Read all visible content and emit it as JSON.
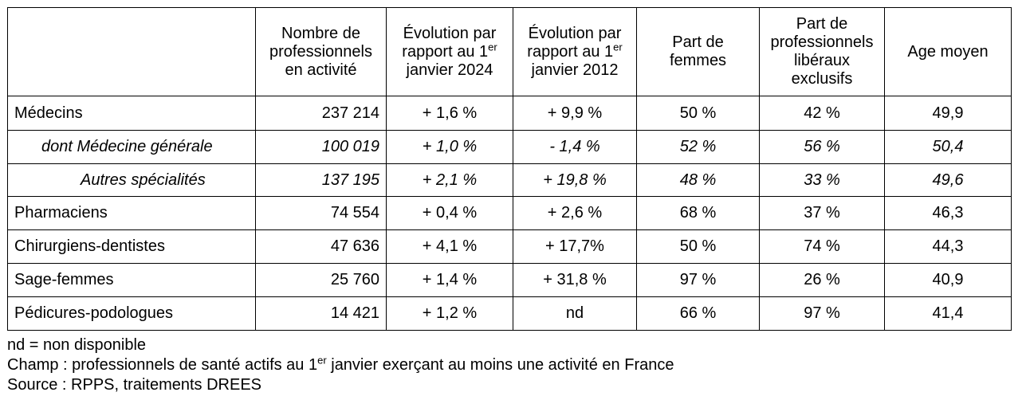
{
  "header": {
    "col1": "Nombre de professionnels en activité",
    "col2_main": "Évolution par rapport au 1",
    "col2_sup": "er",
    "col2_end": " janvier 2024",
    "col3_main": "Évolution par rapport au 1",
    "col3_sup": "er",
    "col3_end": " janvier 2012",
    "col4": "Part de femmes",
    "col5": "Part de professionnels libéraux exclusifs",
    "col6": "Age moyen"
  },
  "rows": [
    {
      "label": "Médecins",
      "count": "237 214",
      "evo2024": "+ 1,6 %",
      "evo2012": "+ 9,9 %",
      "femmes": "50 %",
      "liberaux": "42 %",
      "age": "49,9"
    },
    {
      "label": "dont Médecine générale",
      "count": "100 019",
      "evo2024": "+ 1,0 %",
      "evo2012": "- 1,4 %",
      "femmes": "52 %",
      "liberaux": "56 %",
      "age": "50,4"
    },
    {
      "label": "Autres spécialités",
      "count": "137 195",
      "evo2024": "+ 2,1 %",
      "evo2012": "+ 19,8 %",
      "femmes": "48 %",
      "liberaux": "33 %",
      "age": "49,6"
    },
    {
      "label": "Pharmaciens",
      "count": "74 554",
      "evo2024": "+ 0,4 %",
      "evo2012": "+ 2,6 %",
      "femmes": "68 %",
      "liberaux": "37 %",
      "age": "46,3"
    },
    {
      "label": "Chirurgiens-dentistes",
      "count": "47 636",
      "evo2024": "+ 4,1 %",
      "evo2012": "+ 17,7%",
      "femmes": "50 %",
      "liberaux": "74 %",
      "age": "44,3"
    },
    {
      "label": "Sage-femmes",
      "count": "25 760",
      "evo2024": "+ 1,4 %",
      "evo2012": "+ 31,8 %",
      "femmes": "97 %",
      "liberaux": "26 %",
      "age": "40,9"
    },
    {
      "label": "Pédicures-podologues",
      "count": "14 421",
      "evo2024": "+ 1,2 %",
      "evo2012": "nd",
      "femmes": "66 %",
      "liberaux": "97 %",
      "age": "41,4"
    }
  ],
  "notes": {
    "nd": "nd = non disponible",
    "champ_pre": "Champ : professionnels de santé actifs au 1",
    "champ_sup": "er",
    "champ_post": " janvier exerçant au moins une activité en France",
    "source": "Source : RPPS, traitements DREES"
  }
}
